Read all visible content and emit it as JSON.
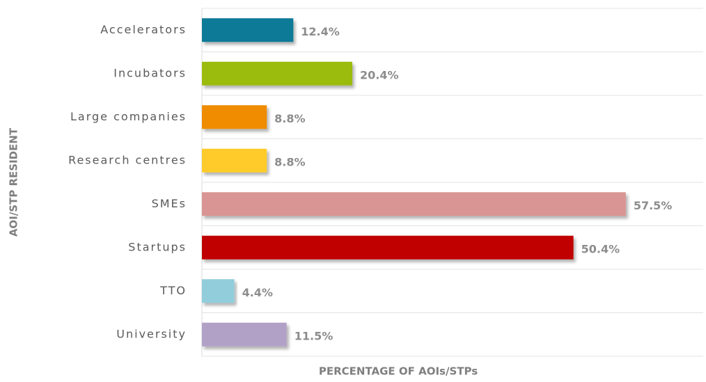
{
  "chart_data": {
    "type": "bar",
    "orientation": "horizontal",
    "y_label": "AOI/STP RESIDENT",
    "x_label": "PERCENTAGE OF AOIs/STPs",
    "categories": [
      "Accelerators",
      "Incubators",
      "Large companies",
      "Research centres",
      "SMEs",
      "Startups",
      "TTO",
      "University"
    ],
    "values": [
      12.4,
      20.4,
      8.8,
      8.8,
      57.5,
      50.4,
      4.4,
      11.5
    ],
    "value_labels": [
      "12.4%",
      "20.4%",
      "8.8%",
      "8.8%",
      "57.5%",
      "50.4%",
      "4.4%",
      "11.5%"
    ],
    "colors": [
      "#0e7a98",
      "#9bbb0f",
      "#ef8c00",
      "#ffcb2b",
      "#d99594",
      "#c00000",
      "#92cddc",
      "#b2a1c7"
    ],
    "xlim": [
      0,
      68
    ]
  }
}
